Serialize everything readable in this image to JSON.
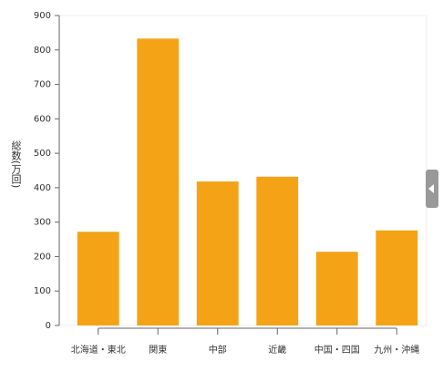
{
  "chart_data": {
    "type": "bar",
    "y_label": "総数(万回)",
    "categories": [
      "北海道・東北",
      "関東",
      "中部",
      "近畿",
      "中国・四国",
      "九州・沖縄"
    ],
    "values": [
      272,
      833,
      418,
      432,
      214,
      276
    ],
    "color": "#f4a317",
    "ylim": [
      0,
      900
    ],
    "yticks": [
      0,
      100,
      200,
      300,
      400,
      500,
      600,
      700,
      800,
      900
    ],
    "grid": false
  }
}
